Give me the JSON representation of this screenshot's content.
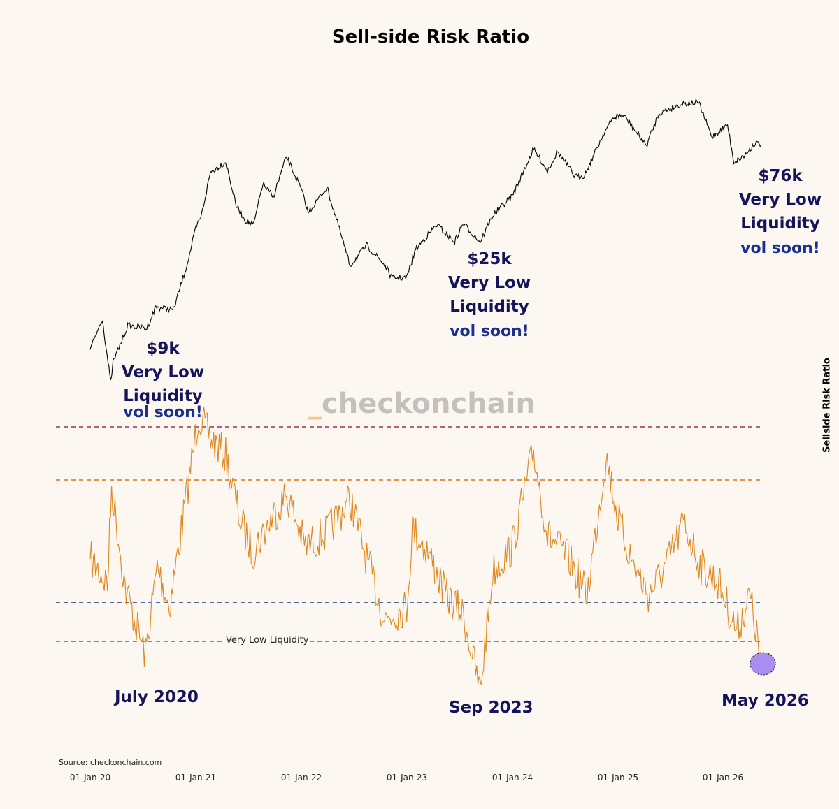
{
  "title": "Sell-side Risk Ratio",
  "watermark": {
    "underscore": "_",
    "text": "checkonchain"
  },
  "source": "Source: checkonchain.com",
  "annotations": [
    {
      "price": "$9k",
      "line1": "Very Low",
      "line2": "Liquidity",
      "vol": "vol soon!"
    },
    {
      "price": "$25k",
      "line1": "Very Low",
      "line2": "Liquidity",
      "vol": "vol soon!"
    },
    {
      "price": "$76k",
      "line1": "Very Low",
      "line2": "Liquidity",
      "vol": "vol soon!"
    }
  ],
  "date_annotations": [
    "July 2020",
    "Sep 2023",
    "May 2026"
  ],
  "colors": {
    "price_line": "#000000",
    "ssr_line": "#e0861f",
    "top_band": "#a03050",
    "high_band": "#d9731a",
    "mid_band": "#1c3c7a",
    "low_band": "#6a48d0",
    "highlight": "#a98ef0",
    "annotation_text": "#15145a",
    "vol_text": "#1a2f8f"
  },
  "chart_data": {
    "type": "line",
    "title": "Sell-side Risk Ratio",
    "ylabel": "Sellside Risk Ratio",
    "x_ticks": [
      "01-Jan-20",
      "01-Jan-21",
      "01-Jan-22",
      "01-Jan-23",
      "01-Jan-24",
      "01-Jan-25",
      "01-Jan-26"
    ],
    "x_range": [
      "2020-01-01",
      "2026-05-15"
    ],
    "bands": [
      {
        "level": "top",
        "style": "dashed",
        "color": "#a03050"
      },
      {
        "level": "high",
        "style": "dashed",
        "color": "#d9731a"
      },
      {
        "level": "mid",
        "style": "dashed",
        "color": "#1c3c7a"
      },
      {
        "level": "low",
        "style": "dashed",
        "color": "#6a48d0",
        "label": "Very Low Liquidity"
      }
    ],
    "series": [
      {
        "kind": "price",
        "color": "#000000",
        "points": [
          [
            "2020-01-01",
            7200
          ],
          [
            "2020-02-12",
            10300
          ],
          [
            "2020-03-12",
            4900
          ],
          [
            "2020-03-20",
            6200
          ],
          [
            "2020-05-10",
            9500
          ],
          [
            "2020-07-15",
            9200
          ],
          [
            "2020-08-15",
            11800
          ],
          [
            "2020-10-15",
            11400
          ],
          [
            "2020-11-30",
            19000
          ],
          [
            "2020-12-31",
            29000
          ],
          [
            "2021-01-20",
            34000
          ],
          [
            "2021-02-20",
            56000
          ],
          [
            "2021-04-14",
            63000
          ],
          [
            "2021-05-20",
            38000
          ],
          [
            "2021-06-22",
            32000
          ],
          [
            "2021-07-20",
            30500
          ],
          [
            "2021-08-20",
            49000
          ],
          [
            "2021-09-25",
            42000
          ],
          [
            "2021-11-10",
            67000
          ],
          [
            "2021-12-31",
            46000
          ],
          [
            "2022-01-24",
            35000
          ],
          [
            "2022-03-30",
            47000
          ],
          [
            "2022-05-12",
            29000
          ],
          [
            "2022-06-18",
            19000
          ],
          [
            "2022-08-15",
            24000
          ],
          [
            "2022-10-15",
            19200
          ],
          [
            "2022-11-10",
            16500
          ],
          [
            "2022-12-31",
            16500
          ],
          [
            "2023-01-31",
            23000
          ],
          [
            "2023-04-14",
            30500
          ],
          [
            "2023-06-15",
            25000
          ],
          [
            "2023-07-14",
            31000
          ],
          [
            "2023-09-11",
            25000
          ],
          [
            "2023-10-25",
            34000
          ],
          [
            "2023-12-31",
            42500
          ],
          [
            "2024-03-14",
            73000
          ],
          [
            "2024-05-01",
            57000
          ],
          [
            "2024-06-05",
            71000
          ],
          [
            "2024-08-05",
            53000
          ],
          [
            "2024-09-06",
            54000
          ],
          [
            "2024-11-12",
            88000
          ],
          [
            "2024-12-17",
            106000
          ],
          [
            "2025-01-20",
            108000
          ],
          [
            "2025-04-08",
            76000
          ],
          [
            "2025-05-22",
            111000
          ],
          [
            "2025-08-14",
            124000
          ],
          [
            "2025-10-06",
            125000
          ],
          [
            "2025-11-21",
            84000
          ],
          [
            "2026-01-14",
            97000
          ],
          [
            "2026-02-05",
            63000
          ],
          [
            "2026-03-15",
            68000
          ],
          [
            "2026-04-20",
            79000
          ],
          [
            "2026-05-10",
            76000
          ]
        ]
      },
      {
        "kind": "sellside_risk_ratio",
        "color": "#e0861f",
        "note": "relative level per date; 1.0 = top dashed band (y_levels: top 1.0, high 0.78, mid 0.28, low 0.12)",
        "points": [
          [
            "2020-01-01",
            0.45
          ],
          [
            "2020-03-01",
            0.35
          ],
          [
            "2020-03-15",
            0.75
          ],
          [
            "2020-05-01",
            0.33
          ],
          [
            "2020-07-10",
            0.05
          ],
          [
            "2020-08-20",
            0.42
          ],
          [
            "2020-10-01",
            0.25
          ],
          [
            "2020-11-15",
            0.6
          ],
          [
            "2020-12-25",
            0.92
          ],
          [
            "2021-01-10",
            1.05
          ],
          [
            "2021-02-20",
            0.95
          ],
          [
            "2021-04-14",
            0.88
          ],
          [
            "2021-06-01",
            0.62
          ],
          [
            "2021-07-15",
            0.48
          ],
          [
            "2021-09-01",
            0.58
          ],
          [
            "2021-11-10",
            0.72
          ],
          [
            "2022-01-15",
            0.5
          ],
          [
            "2022-03-30",
            0.56
          ],
          [
            "2022-06-18",
            0.7
          ],
          [
            "2022-08-15",
            0.45
          ],
          [
            "2022-10-15",
            0.2
          ],
          [
            "2022-12-31",
            0.25
          ],
          [
            "2023-01-20",
            0.58
          ],
          [
            "2023-03-15",
            0.48
          ],
          [
            "2023-05-15",
            0.3
          ],
          [
            "2023-07-15",
            0.22
          ],
          [
            "2023-09-11",
            -0.1
          ],
          [
            "2023-10-25",
            0.4
          ],
          [
            "2023-12-31",
            0.5
          ],
          [
            "2024-03-14",
            0.9
          ],
          [
            "2024-05-01",
            0.55
          ],
          [
            "2024-07-15",
            0.45
          ],
          [
            "2024-09-15",
            0.3
          ],
          [
            "2024-11-20",
            0.88
          ],
          [
            "2024-12-31",
            0.62
          ],
          [
            "2025-02-15",
            0.45
          ],
          [
            "2025-04-15",
            0.3
          ],
          [
            "2025-06-15",
            0.42
          ],
          [
            "2025-08-15",
            0.6
          ],
          [
            "2025-10-15",
            0.42
          ],
          [
            "2025-12-15",
            0.35
          ],
          [
            "2026-02-15",
            0.15
          ],
          [
            "2026-04-01",
            0.3
          ],
          [
            "2026-05-10",
            0.02
          ]
        ]
      }
    ]
  }
}
